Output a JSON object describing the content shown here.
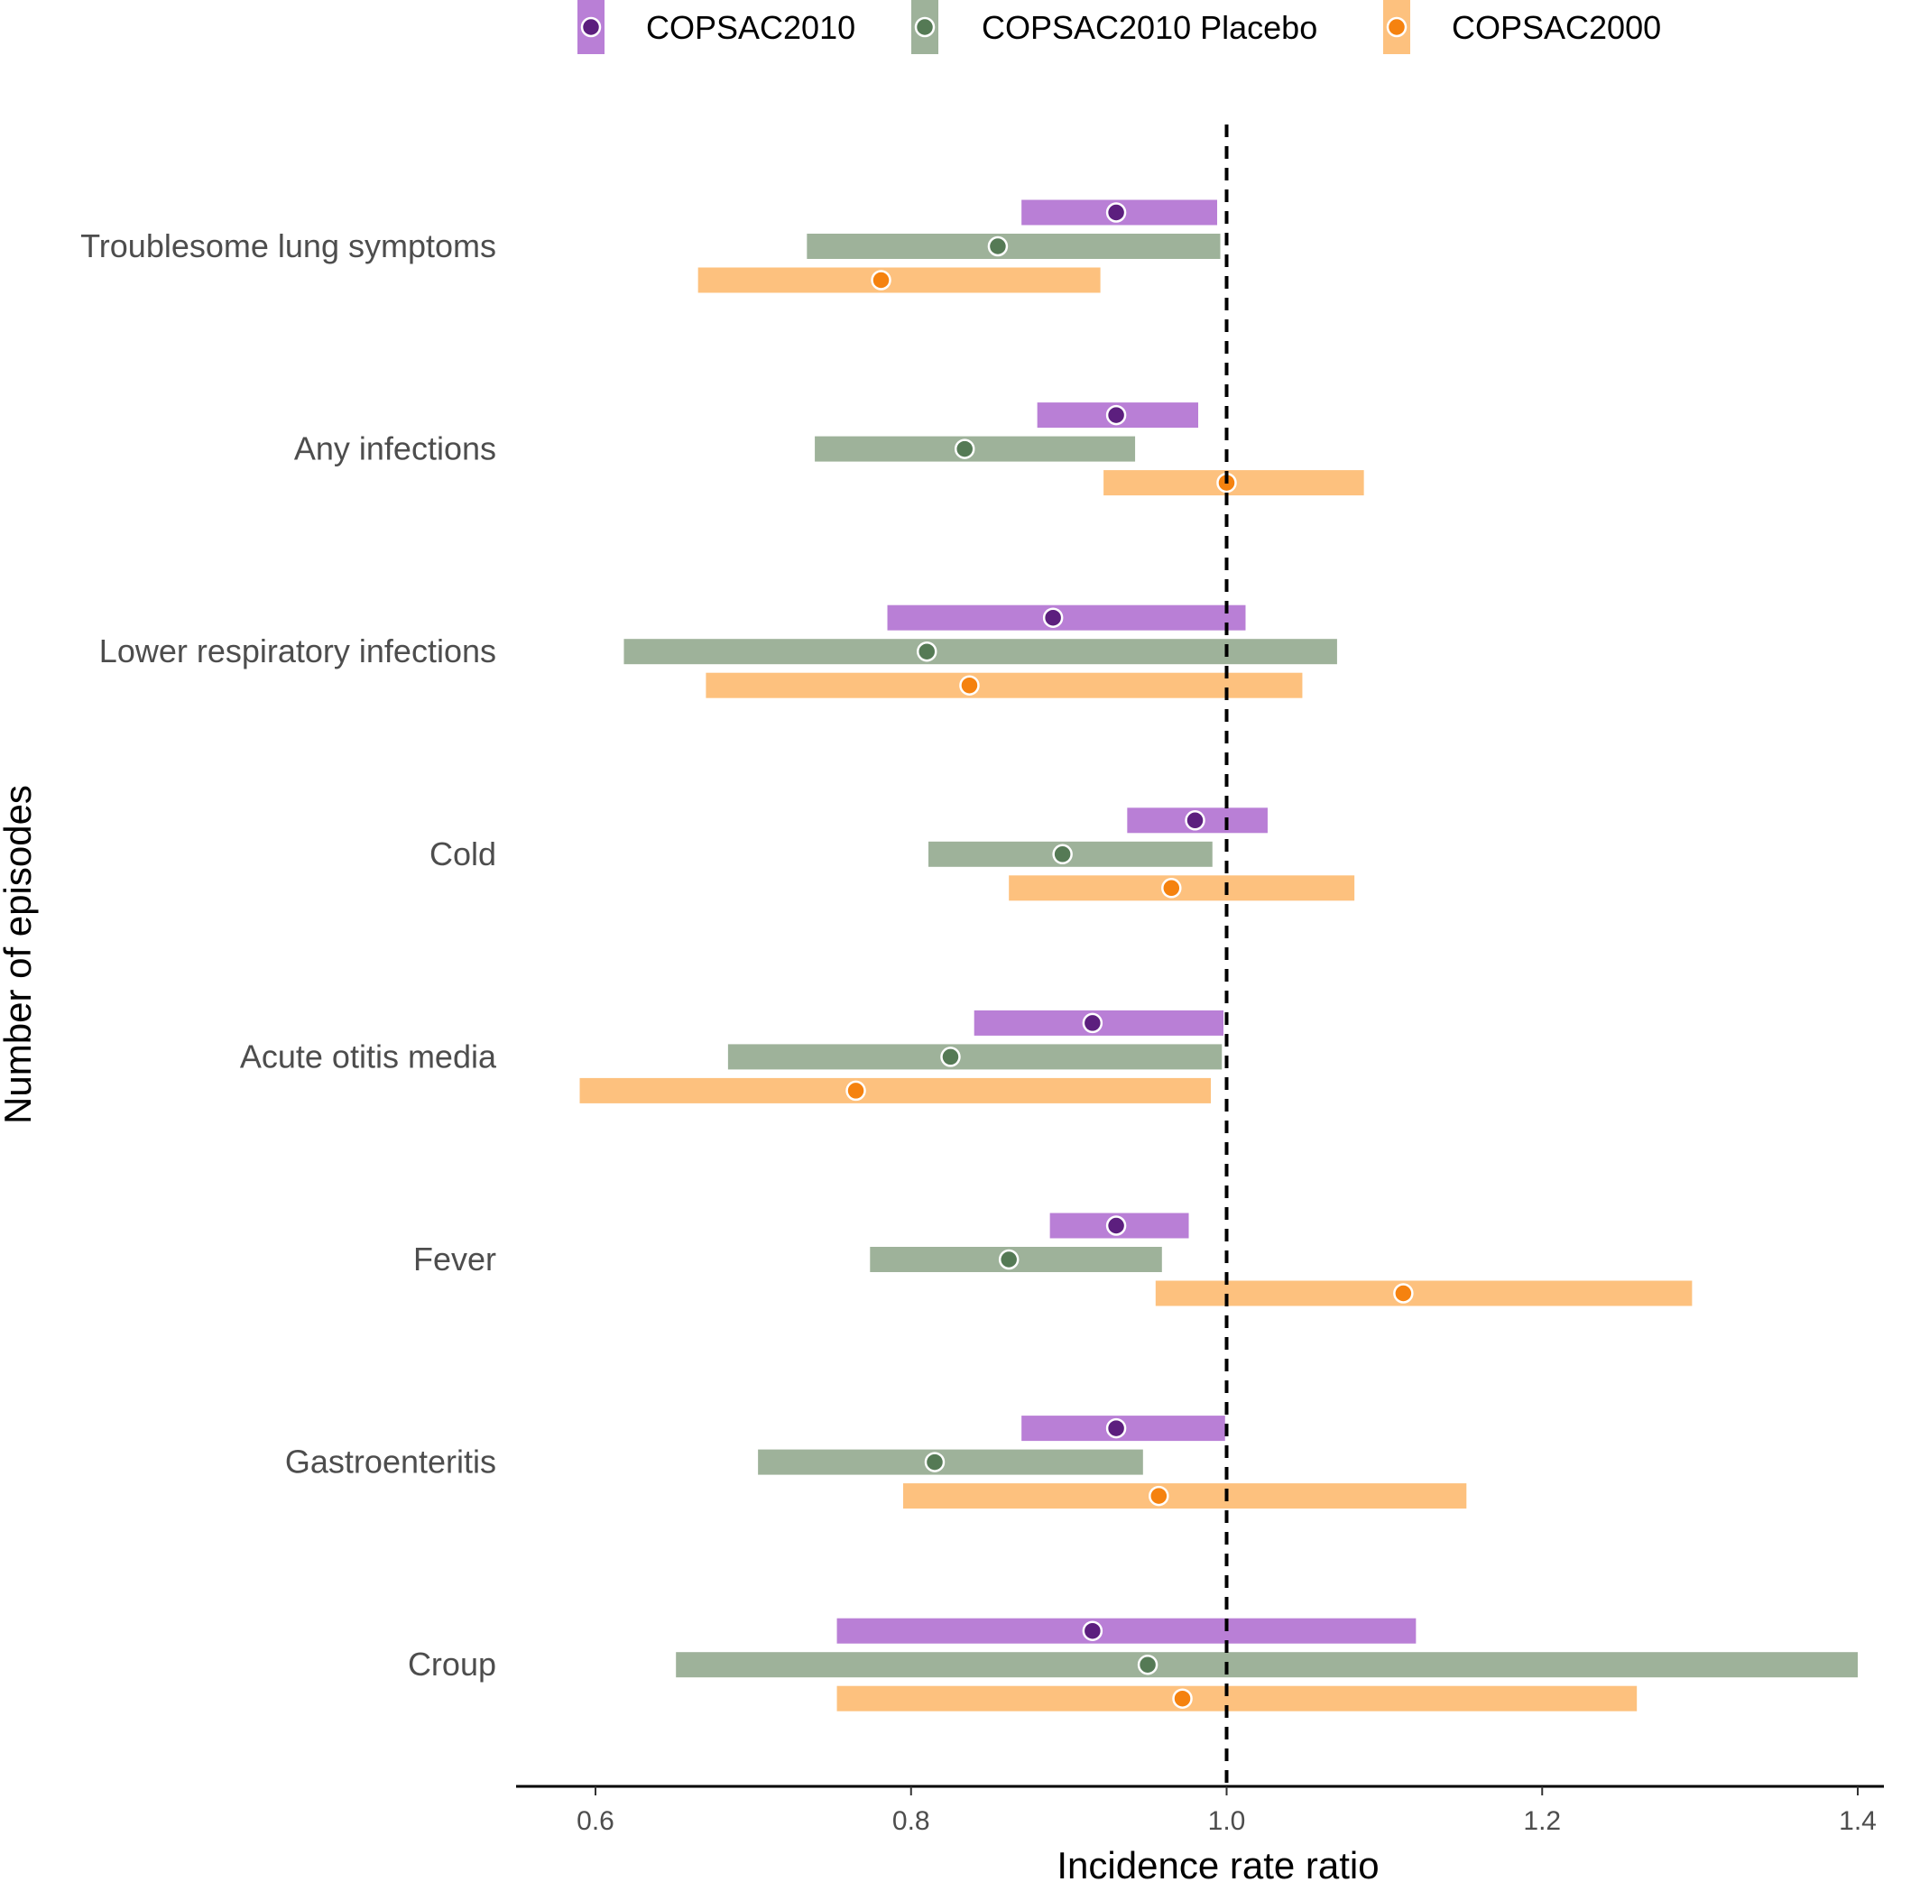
{
  "chart_data": {
    "type": "forest",
    "title": "",
    "xlabel": "Incidence rate ratio",
    "ylabel": "Number of episodes",
    "xlim": [
      0.55,
      1.42
    ],
    "xticks": [
      0.6,
      0.8,
      1.0,
      1.2,
      1.4
    ],
    "xtick_labels": [
      "0.6",
      "0.8",
      "1.0",
      "1.2",
      "1.4"
    ],
    "reference_line": 1.0,
    "grid": false,
    "legend_position": "top",
    "categories": [
      "Troublesome lung symptoms",
      "Any infections",
      "Lower respiratory infections",
      "Cold",
      "Acute otitis media",
      "Fever",
      "Gastroenteritis",
      "Croup"
    ],
    "series": [
      {
        "name": "COPSAC2010",
        "bar_color": "#b97fd6",
        "point_color": "#5c1f7e",
        "estimates": [
          0.93,
          0.93,
          0.89,
          0.98,
          0.915,
          0.93,
          0.93,
          0.915
        ],
        "lower": [
          0.87,
          0.88,
          0.785,
          0.937,
          0.84,
          0.888,
          0.87,
          0.753
        ],
        "upper": [
          0.994,
          0.982,
          1.012,
          1.026,
          0.998,
          0.976,
          0.999,
          1.12
        ]
      },
      {
        "name": "COPSAC2010 Placebo",
        "bar_color": "#9eb29a",
        "point_color": "#557a55",
        "estimates": [
          0.855,
          0.834,
          0.81,
          0.896,
          0.825,
          0.862,
          0.815,
          0.95
        ],
        "lower": [
          0.734,
          0.739,
          0.618,
          0.811,
          0.684,
          0.774,
          0.703,
          0.651
        ],
        "upper": [
          0.996,
          0.942,
          1.07,
          0.991,
          0.997,
          0.959,
          0.947,
          1.4
        ]
      },
      {
        "name": "COPSAC2000",
        "bar_color": "#fdc17e",
        "point_color": "#f5820f",
        "estimates": [
          0.781,
          1.0,
          0.837,
          0.965,
          0.765,
          1.112,
          0.957,
          0.972
        ],
        "lower": [
          0.665,
          0.922,
          0.67,
          0.862,
          0.59,
          0.955,
          0.795,
          0.753
        ],
        "upper": [
          0.92,
          1.087,
          1.048,
          1.081,
          0.99,
          1.295,
          1.152,
          1.26
        ]
      }
    ]
  }
}
